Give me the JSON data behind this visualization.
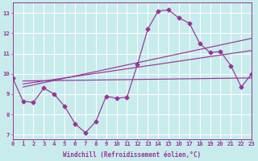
{
  "xlabel": "Windchill (Refroidissement éolien,°C)",
  "background_color": "#c8ecec",
  "grid_color": "#ffffff",
  "line_color": "#993399",
  "xlim": [
    0,
    23
  ],
  "ylim": [
    6.8,
    13.5
  ],
  "yticks": [
    7,
    8,
    9,
    10,
    11,
    12,
    13
  ],
  "xticks": [
    0,
    1,
    2,
    3,
    4,
    5,
    6,
    7,
    8,
    9,
    10,
    11,
    12,
    13,
    14,
    15,
    16,
    17,
    18,
    19,
    20,
    21,
    22,
    23
  ],
  "line1_x": [
    0,
    1,
    2,
    3,
    4,
    5,
    6,
    7,
    8,
    9,
    10,
    11,
    12,
    13,
    14,
    15,
    16,
    17,
    18,
    19,
    20,
    21,
    22,
    23
  ],
  "line1_y": [
    9.8,
    8.65,
    8.6,
    9.3,
    9.0,
    8.4,
    7.55,
    7.1,
    7.65,
    8.9,
    8.8,
    8.85,
    10.45,
    12.2,
    13.1,
    13.15,
    12.75,
    12.5,
    11.5,
    11.05,
    11.1,
    10.4,
    9.35,
    10.0
  ],
  "line2_x": [
    1,
    23
  ],
  "line2_y": [
    9.35,
    11.75
  ],
  "line3_x": [
    1,
    23
  ],
  "line3_y": [
    9.5,
    11.15
  ],
  "line4_x": [
    1,
    23
  ],
  "line4_y": [
    9.65,
    9.8
  ]
}
